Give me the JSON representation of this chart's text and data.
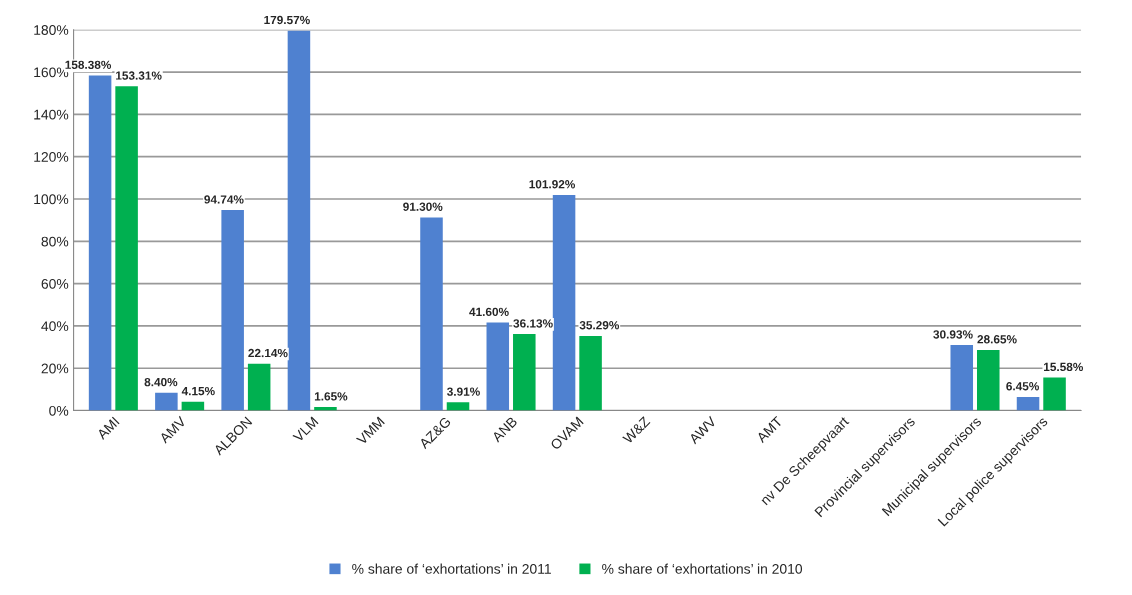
{
  "chart_data": {
    "type": "bar",
    "categories": [
      "AMI",
      "AMV",
      "ALBON",
      "VLM",
      "VMM",
      "AZ&G",
      "ANB",
      "OVAM",
      "W&Z",
      "AWV",
      "AMT",
      "nv De Scheepvaart",
      "Provincial supervisors",
      "Municipal supervisors",
      "Local police supervisors"
    ],
    "series": [
      {
        "name": "% share of ‘exhortations’ in 2011",
        "color": "#4f81d0",
        "values": [
          158.38,
          8.4,
          94.74,
          179.57,
          0,
          91.3,
          41.6,
          101.92,
          0,
          0,
          0,
          0,
          0,
          30.93,
          6.45
        ],
        "value_labels": [
          "158.38%",
          "8.40%",
          "94.74%",
          "179.57%",
          null,
          "91.30%",
          "41.60%",
          "101.92%",
          null,
          null,
          null,
          null,
          null,
          "30.93%",
          "6.45%"
        ]
      },
      {
        "name": "% share of ‘exhortations’ in 2010",
        "color": "#00b050",
        "values": [
          153.31,
          4.15,
          22.14,
          1.65,
          0,
          3.91,
          36.13,
          35.29,
          0,
          0,
          0,
          0,
          0,
          28.65,
          15.58
        ],
        "value_labels": [
          "153.31%",
          "4.15%",
          "22.14%",
          "1.65%",
          null,
          "3.91%",
          "36.13%",
          "35.29%",
          null,
          null,
          null,
          null,
          null,
          "28.65%",
          "15.58%"
        ]
      }
    ],
    "ylim": [
      0,
      180
    ],
    "yticks": [
      {
        "value": 0,
        "label": "0%"
      },
      {
        "value": 20,
        "label": "20%"
      },
      {
        "value": 40,
        "label": "40%"
      },
      {
        "value": 60,
        "label": "60%"
      },
      {
        "value": 80,
        "label": "80%"
      },
      {
        "value": 100,
        "label": "100%"
      },
      {
        "value": 120,
        "label": "120%"
      },
      {
        "value": 140,
        "label": "140%"
      },
      {
        "value": 160,
        "label": "160%"
      },
      {
        "value": 180,
        "label": "180%"
      }
    ],
    "grid": "y",
    "legend": "bottom"
  }
}
